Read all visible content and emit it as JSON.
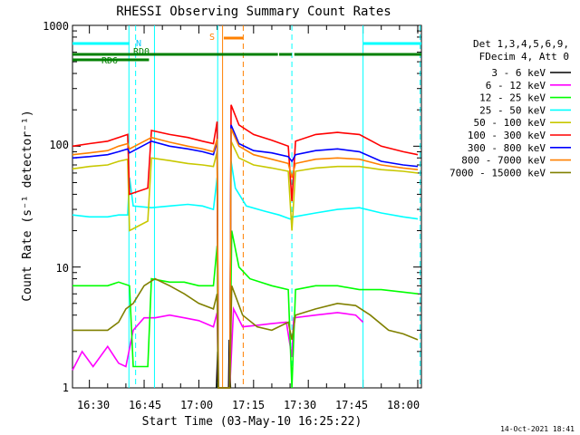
{
  "chart_data": {
    "type": "line",
    "title": "RHESSI Observing Summary Count Rates",
    "xlabel": "Start Time (03-May-10 16:25:22)",
    "ylabel": "Count Rate (s⁻¹ detector⁻¹)",
    "yscale": "log",
    "ylim": [
      1,
      1000
    ],
    "xlim": [
      "16:25:22",
      "18:01:00"
    ],
    "x_ticks": [
      "16:30",
      "16:45",
      "17:00",
      "17:15",
      "17:30",
      "17:45",
      "18:00"
    ],
    "y_ticks": [
      "1",
      "10",
      "100",
      "1000"
    ],
    "grid": false,
    "legend_position": "top-right",
    "legend_header": [
      "Det 1,3,4,5,6,9,",
      "FDecim 4, Att 0"
    ],
    "footer_date": "14-Oct-2021 18:41",
    "annotations": [
      {
        "text": "N",
        "color": "#00c8ff"
      },
      {
        "text": "RD0",
        "color": "#008000"
      },
      {
        "text": "RD6",
        "color": "#008000"
      },
      {
        "text": "S",
        "color": "#ff8000"
      }
    ],
    "bars": [
      {
        "name": "N",
        "color": "#00ffff",
        "segments": [
          [
            "16:25:22",
            "16:41:00"
          ],
          [
            "17:45:00",
            "18:01:00"
          ]
        ]
      },
      {
        "name": "RD0",
        "color": "#008000",
        "segments": [
          [
            "16:25:22",
            "17:21:40"
          ],
          [
            "17:22:00",
            "17:25:30"
          ],
          [
            "17:26:10",
            "18:01:00"
          ]
        ]
      },
      {
        "name": "RD6",
        "color": "#008000",
        "segments": [
          [
            "16:25:22",
            "16:46:20"
          ]
        ]
      },
      {
        "name": "S",
        "color": "#ff8000",
        "segments": [
          [
            "17:06:50",
            "17:12:10"
          ]
        ]
      }
    ],
    "vlines": [
      {
        "x": "16:42:40",
        "color": "#00ffff",
        "style": "dashed"
      },
      {
        "x": "16:40:50",
        "color": "#00ffff",
        "style": "solid"
      },
      {
        "x": "16:47:50",
        "color": "#00ffff",
        "style": "solid"
      },
      {
        "x": "17:05:10",
        "color": "#00ffff",
        "style": "solid"
      },
      {
        "x": "17:06:30",
        "color": "#ff8000",
        "style": "solid"
      },
      {
        "x": "17:12:10",
        "color": "#ff8000",
        "style": "dashed"
      },
      {
        "x": "17:25:30",
        "color": "#00ffff",
        "style": "dashed"
      },
      {
        "x": "17:45:00",
        "color": "#00ffff",
        "style": "solid"
      },
      {
        "x": "18:00:40",
        "color": "#00ffff",
        "style": "dashed"
      }
    ],
    "series": [
      {
        "name": "3 - 6 keV",
        "color": "#000000",
        "points": [
          [
            "17:04:50",
            1
          ],
          [
            "17:05:10",
            2
          ],
          [
            "17:05:20",
            1
          ],
          [
            "17:08:10",
            1
          ],
          [
            "17:08:20",
            2.5
          ],
          [
            "17:08:40",
            1
          ]
        ]
      },
      {
        "name": "6 - 12 keV",
        "color": "#ff00ff",
        "points": [
          [
            "16:25:22",
            1.4
          ],
          [
            "16:28:00",
            2
          ],
          [
            "16:31:00",
            1.5
          ],
          [
            "16:35:00",
            2.2
          ],
          [
            "16:38:00",
            1.6
          ],
          [
            "16:40:00",
            1.5
          ],
          [
            "16:42:00",
            3
          ],
          [
            "16:45:00",
            3.8
          ],
          [
            "16:48:00",
            3.8
          ],
          [
            "16:52:00",
            4
          ],
          [
            "16:56:00",
            3.8
          ],
          [
            "17:00:00",
            3.6
          ],
          [
            "17:04:00",
            3.2
          ],
          [
            "17:05:00",
            4.2
          ],
          [
            "17:05:20",
            1
          ],
          [
            "17:08:30",
            1
          ],
          [
            "17:09:30",
            4.5
          ],
          [
            "17:12:00",
            3.2
          ],
          [
            "17:16:00",
            3.3
          ],
          [
            "17:20:00",
            3.4
          ],
          [
            "17:24:00",
            3.5
          ],
          [
            "17:25:30",
            1.8
          ],
          [
            "17:26:00",
            3.8
          ],
          [
            "17:32:00",
            4
          ],
          [
            "17:38:00",
            4.2
          ],
          [
            "17:43:00",
            4
          ],
          [
            "17:45:00",
            3.5
          ]
        ]
      },
      {
        "name": "12 - 25 keV",
        "color": "#00ff00",
        "points": [
          [
            "16:25:22",
            7
          ],
          [
            "16:30:00",
            7
          ],
          [
            "16:35:00",
            7
          ],
          [
            "16:38:00",
            7.5
          ],
          [
            "16:41:00",
            7
          ],
          [
            "16:42:00",
            1.5
          ],
          [
            "16:46:00",
            1.5
          ],
          [
            "16:47:00",
            8
          ],
          [
            "16:52:00",
            7.5
          ],
          [
            "16:56:00",
            7.5
          ],
          [
            "17:00:00",
            7
          ],
          [
            "17:04:00",
            7
          ],
          [
            "17:05:00",
            15
          ],
          [
            "17:05:20",
            1
          ],
          [
            "17:08:30",
            1
          ],
          [
            "17:09:00",
            20
          ],
          [
            "17:11:00",
            10
          ],
          [
            "17:14:00",
            8
          ],
          [
            "17:20:00",
            7
          ],
          [
            "17:24:30",
            6.5
          ],
          [
            "17:25:30",
            1
          ],
          [
            "17:26:30",
            6.5
          ],
          [
            "17:32:00",
            7
          ],
          [
            "17:38:00",
            7
          ],
          [
            "17:44:00",
            6.5
          ],
          [
            "17:50:00",
            6.5
          ],
          [
            "17:56:00",
            6.2
          ],
          [
            "18:00:00",
            6
          ]
        ]
      },
      {
        "name": "25 - 50 keV",
        "color": "#00ffff",
        "points": [
          [
            "16:25:22",
            27
          ],
          [
            "16:30:00",
            26
          ],
          [
            "16:35:00",
            26
          ],
          [
            "16:38:00",
            27
          ],
          [
            "16:40:30",
            27
          ],
          [
            "16:41:00",
            55
          ],
          [
            "16:42:00",
            32
          ],
          [
            "16:47:00",
            31
          ],
          [
            "16:52:00",
            32
          ],
          [
            "16:57:00",
            33
          ],
          [
            "17:01:00",
            32
          ],
          [
            "17:04:00",
            30
          ],
          [
            "17:05:00",
            55
          ],
          [
            "17:05:20",
            1
          ],
          [
            "17:08:30",
            1
          ],
          [
            "17:08:50",
            75
          ],
          [
            "17:10:00",
            45
          ],
          [
            "17:13:00",
            32
          ],
          [
            "17:18:00",
            29
          ],
          [
            "17:22:00",
            27
          ],
          [
            "17:25:00",
            25
          ],
          [
            "17:26:00",
            26
          ],
          [
            "17:32:00",
            28
          ],
          [
            "17:38:00",
            30
          ],
          [
            "17:44:00",
            31
          ],
          [
            "17:50:00",
            28
          ],
          [
            "17:56:00",
            26
          ],
          [
            "18:00:00",
            25
          ]
        ]
      },
      {
        "name": "50 - 100 keV",
        "color": "#c8c800",
        "points": [
          [
            "16:25:22",
            65
          ],
          [
            "16:30:00",
            68
          ],
          [
            "16:35:00",
            70
          ],
          [
            "16:38:00",
            75
          ],
          [
            "16:40:30",
            78
          ],
          [
            "16:41:00",
            20
          ],
          [
            "16:46:00",
            24
          ],
          [
            "16:47:00",
            80
          ],
          [
            "16:52:00",
            76
          ],
          [
            "16:57:00",
            72
          ],
          [
            "17:01:00",
            70
          ],
          [
            "17:04:00",
            68
          ],
          [
            "17:05:00",
            90
          ],
          [
            "17:05:20",
            1
          ],
          [
            "17:08:30",
            1
          ],
          [
            "17:08:50",
            110
          ],
          [
            "17:11:00",
            80
          ],
          [
            "17:15:00",
            70
          ],
          [
            "17:20:00",
            66
          ],
          [
            "17:24:30",
            62
          ],
          [
            "17:25:30",
            20
          ],
          [
            "17:26:30",
            62
          ],
          [
            "17:32:00",
            66
          ],
          [
            "17:38:00",
            68
          ],
          [
            "17:44:00",
            68
          ],
          [
            "17:50:00",
            64
          ],
          [
            "17:56:00",
            62
          ],
          [
            "18:00:00",
            60
          ]
        ]
      },
      {
        "name": "100 - 300 keV",
        "color": "#ff0000",
        "points": [
          [
            "16:25:22",
            100
          ],
          [
            "16:30:00",
            105
          ],
          [
            "16:35:00",
            110
          ],
          [
            "16:38:00",
            118
          ],
          [
            "16:40:30",
            125
          ],
          [
            "16:41:00",
            40
          ],
          [
            "16:46:00",
            45
          ],
          [
            "16:47:00",
            135
          ],
          [
            "16:52:00",
            125
          ],
          [
            "16:57:00",
            118
          ],
          [
            "17:01:00",
            110
          ],
          [
            "17:04:00",
            105
          ],
          [
            "17:05:00",
            160
          ],
          [
            "17:05:20",
            1
          ],
          [
            "17:08:30",
            1
          ],
          [
            "17:08:50",
            220
          ],
          [
            "17:11:00",
            150
          ],
          [
            "17:15:00",
            125
          ],
          [
            "17:20:00",
            112
          ],
          [
            "17:24:30",
            100
          ],
          [
            "17:25:30",
            35
          ],
          [
            "17:26:30",
            110
          ],
          [
            "17:32:00",
            125
          ],
          [
            "17:38:00",
            130
          ],
          [
            "17:44:00",
            125
          ],
          [
            "17:50:00",
            100
          ],
          [
            "17:56:00",
            90
          ],
          [
            "18:00:00",
            85
          ]
        ]
      },
      {
        "name": "300 - 800 keV",
        "color": "#0000ff",
        "points": [
          [
            "16:25:22",
            80
          ],
          [
            "16:30:00",
            82
          ],
          [
            "16:35:00",
            85
          ],
          [
            "16:38:00",
            90
          ],
          [
            "16:40:30",
            95
          ],
          [
            "16:41:00",
            88
          ],
          [
            "16:47:00",
            110
          ],
          [
            "16:52:00",
            100
          ],
          [
            "16:57:00",
            95
          ],
          [
            "17:01:00",
            90
          ],
          [
            "17:04:00",
            85
          ],
          [
            "17:05:00",
            110
          ],
          [
            "17:05:20",
            1
          ],
          [
            "17:08:30",
            1
          ],
          [
            "17:08:50",
            150
          ],
          [
            "17:11:00",
            105
          ],
          [
            "17:15:00",
            92
          ],
          [
            "17:20:00",
            88
          ],
          [
            "17:24:30",
            82
          ],
          [
            "17:25:30",
            75
          ],
          [
            "17:26:30",
            85
          ],
          [
            "17:32:00",
            92
          ],
          [
            "17:38:00",
            95
          ],
          [
            "17:44:00",
            90
          ],
          [
            "17:50:00",
            75
          ],
          [
            "17:56:00",
            70
          ],
          [
            "18:00:00",
            68
          ]
        ]
      },
      {
        "name": "800 - 7000 keV",
        "color": "#ff8000",
        "points": [
          [
            "16:25:22",
            85
          ],
          [
            "16:30:00",
            88
          ],
          [
            "16:35:00",
            92
          ],
          [
            "16:38:00",
            100
          ],
          [
            "16:40:30",
            105
          ],
          [
            "16:41:00",
            95
          ],
          [
            "16:47:00",
            118
          ],
          [
            "16:52:00",
            108
          ],
          [
            "16:57:00",
            100
          ],
          [
            "17:01:00",
            95
          ],
          [
            "17:04:00",
            90
          ],
          [
            "17:05:00",
            115
          ],
          [
            "17:05:20",
            1
          ],
          [
            "17:08:30",
            1
          ],
          [
            "17:08:50",
            140
          ],
          [
            "17:11:00",
            100
          ],
          [
            "17:15:00",
            85
          ],
          [
            "17:20:00",
            78
          ],
          [
            "17:24:30",
            72
          ],
          [
            "17:25:30",
            55
          ],
          [
            "17:26:30",
            72
          ],
          [
            "17:32:00",
            78
          ],
          [
            "17:38:00",
            80
          ],
          [
            "17:44:00",
            78
          ],
          [
            "17:50:00",
            70
          ],
          [
            "17:56:00",
            66
          ],
          [
            "18:00:00",
            64
          ]
        ]
      },
      {
        "name": "7000 - 15000 keV",
        "color": "#808000",
        "points": [
          [
            "16:25:22",
            3
          ],
          [
            "16:30:00",
            3
          ],
          [
            "16:35:00",
            3
          ],
          [
            "16:38:00",
            3.5
          ],
          [
            "16:40:00",
            4.5
          ],
          [
            "16:42:00",
            5
          ],
          [
            "16:45:00",
            7
          ],
          [
            "16:48:00",
            8
          ],
          [
            "16:52:00",
            7
          ],
          [
            "16:56:00",
            6
          ],
          [
            "17:00:00",
            5
          ],
          [
            "17:04:00",
            4.5
          ],
          [
            "17:05:00",
            6
          ],
          [
            "17:05:20",
            1
          ],
          [
            "17:08:30",
            1
          ],
          [
            "17:09:00",
            7
          ],
          [
            "17:12:00",
            4
          ],
          [
            "17:16:00",
            3.2
          ],
          [
            "17:20:00",
            3
          ],
          [
            "17:24:30",
            3.5
          ],
          [
            "17:25:30",
            2.5
          ],
          [
            "17:26:30",
            4
          ],
          [
            "17:32:00",
            4.5
          ],
          [
            "17:38:00",
            5
          ],
          [
            "17:43:00",
            4.8
          ],
          [
            "17:47:00",
            4
          ],
          [
            "17:52:00",
            3
          ],
          [
            "17:56:00",
            2.8
          ],
          [
            "18:00:00",
            2.5
          ]
        ]
      }
    ]
  }
}
